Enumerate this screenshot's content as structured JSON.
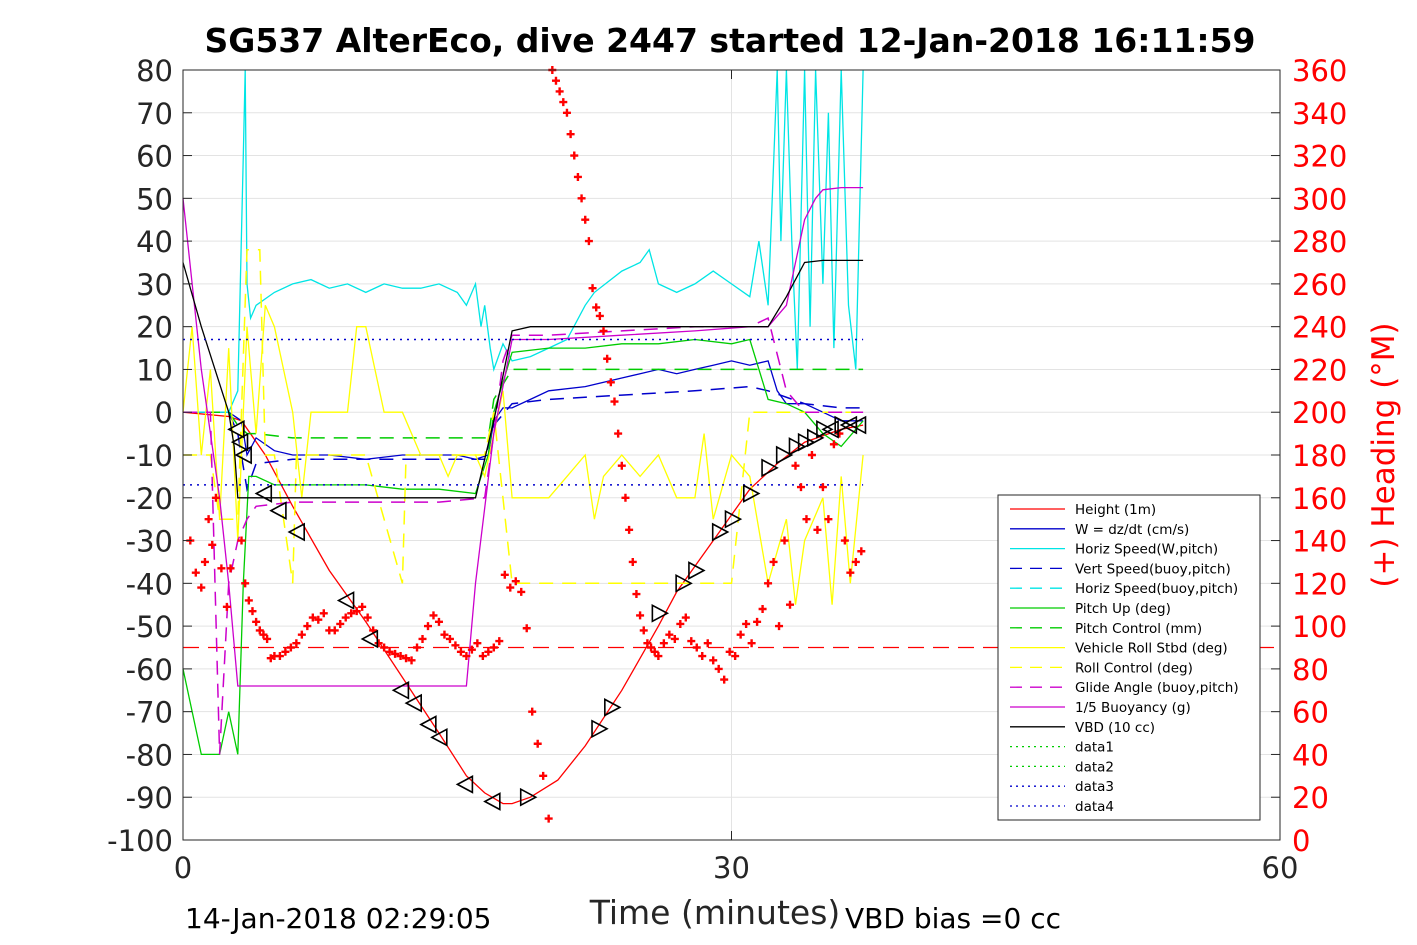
{
  "chart_data": {
    "type": "line",
    "title": "SG537 AlterEco, dive 2447 started 12-Jan-2018 16:11:59",
    "xlabel": "Time (minutes)",
    "ylabel_right": "(+) Heading (°M)",
    "footer_left": "14-Jan-2018 02:29:05",
    "footer_right": "VBD bias =0 cc",
    "xlim": [
      0,
      60
    ],
    "ylim": [
      -100,
      80
    ],
    "ylim_right": [
      0,
      360
    ],
    "x_ticks": [
      0,
      30,
      60
    ],
    "y_ticks": [
      -100,
      -90,
      -80,
      -70,
      -60,
      -50,
      -40,
      -30,
      -20,
      -10,
      0,
      10,
      20,
      30,
      40,
      50,
      60,
      70,
      80
    ],
    "y_ticks_right": [
      0,
      20,
      40,
      60,
      80,
      100,
      120,
      140,
      160,
      180,
      200,
      220,
      240,
      260,
      280,
      300,
      320,
      340,
      360
    ],
    "grid": true,
    "legend_position": "lower-right",
    "colors": {
      "height": "#ff0000",
      "w": "#0000cc",
      "horiz": "#00e5e5",
      "pitch": "#00cc00",
      "roll": "#ffff00",
      "glide": "#cc00cc",
      "buoy": "#cc00cc",
      "vbd": "#000000",
      "heading": "#ff0000",
      "axis": "#262626",
      "right_axis": "#ff0000"
    },
    "legend": [
      {
        "label": "Height (1m)",
        "color": "#ff0000",
        "style": "solid"
      },
      {
        "label": "W = dz/dt (cm/s)",
        "color": "#0000cc",
        "style": "solid"
      },
      {
        "label": "Horiz Speed(W,pitch)",
        "color": "#00e5e5",
        "style": "solid"
      },
      {
        "label": "Vert Speed(buoy,pitch)",
        "color": "#0000cc",
        "style": "dashed"
      },
      {
        "label": "Horiz Speed(buoy,pitch)",
        "color": "#00e5e5",
        "style": "dashed"
      },
      {
        "label": "Pitch Up (deg)",
        "color": "#00cc00",
        "style": "solid"
      },
      {
        "label": "Pitch Control (mm)",
        "color": "#00cc00",
        "style": "dashed"
      },
      {
        "label": "Vehicle Roll Stbd (deg)",
        "color": "#ffff00",
        "style": "solid"
      },
      {
        "label": "Roll Control (deg)",
        "color": "#ffff00",
        "style": "dashed"
      },
      {
        "label": "Glide Angle (buoy,pitch)",
        "color": "#cc00cc",
        "style": "dashed"
      },
      {
        "label": "1/5 Buoyancy (g)",
        "color": "#cc00cc",
        "style": "solid"
      },
      {
        "label": "VBD (10 cc)",
        "color": "#000000",
        "style": "solid"
      },
      {
        "label": "data1",
        "color": "#00cc00",
        "style": "dotted"
      },
      {
        "label": "data2",
        "color": "#00cc00",
        "style": "dotted"
      },
      {
        "label": "data3",
        "color": "#0000cc",
        "style": "dotted"
      },
      {
        "label": "data4",
        "color": "#0000cc",
        "style": "dotted"
      }
    ],
    "series": [
      {
        "key": "height",
        "color": "#ff0000",
        "style": "solid",
        "x": [
          0,
          2.5,
          3.2,
          4.5,
          6,
          8,
          10,
          12,
          14,
          15.5,
          16.5,
          17.5,
          18,
          19,
          20.5,
          22,
          24,
          26,
          27,
          28,
          29.5,
          31,
          32.5,
          34,
          36,
          37.2
        ],
        "y": [
          0,
          -1,
          -2,
          -10,
          -22,
          -37,
          -49,
          -62,
          -75,
          -85,
          -89,
          -91.5,
          -91.5,
          -90,
          -86,
          -78,
          -65,
          -50,
          -42,
          -36,
          -27,
          -18,
          -12,
          -7,
          -4,
          -3
        ]
      },
      {
        "key": "w",
        "color": "#0000cc",
        "style": "solid",
        "x": [
          0,
          2.5,
          3.2,
          3.5,
          4,
          5,
          6,
          8,
          10,
          12,
          14,
          15,
          16,
          16.7,
          17,
          17.5,
          18,
          19,
          20,
          22,
          24,
          25,
          26,
          27,
          28,
          29,
          30,
          31,
          32,
          32.5,
          33,
          34,
          35,
          36,
          37.2
        ],
        "y": [
          0,
          0,
          -2,
          -10,
          -6,
          -9,
          -10,
          -10,
          -11,
          -10,
          -10,
          -10,
          -11,
          -10,
          -2,
          1,
          1,
          3,
          5,
          6,
          8,
          9,
          10,
          9,
          10,
          11,
          12,
          11,
          12,
          5,
          2,
          2,
          0,
          -2,
          -2
        ]
      },
      {
        "key": "horiz",
        "color": "#00e5e5",
        "style": "solid",
        "x": [
          0,
          2.5,
          3,
          3.3,
          3.4,
          3.5,
          3.7,
          4,
          5,
          6,
          7,
          8,
          9,
          10,
          11,
          12,
          13,
          14,
          15,
          15.5,
          16,
          16.3,
          16.5,
          16.8,
          17,
          17.5,
          18,
          19,
          20,
          21,
          22,
          22.5,
          24,
          25,
          25.5,
          26,
          27,
          28,
          29,
          30,
          31,
          31.5,
          32,
          32.5,
          32.7,
          33,
          33.3,
          33.6,
          34,
          34.3,
          34.6,
          35,
          35.3,
          35.6,
          36,
          36.4,
          36.8,
          37.2
        ],
        "y": [
          0,
          0,
          5,
          60,
          80,
          30,
          22,
          25,
          28,
          30,
          31,
          29,
          30,
          28,
          30,
          29,
          29,
          30,
          28,
          25,
          30,
          20,
          25,
          15,
          10,
          16,
          12,
          13,
          15,
          17,
          25,
          28,
          33,
          35,
          38,
          30,
          28,
          30,
          33,
          30,
          27,
          40,
          25,
          80,
          40,
          80,
          40,
          10,
          80,
          20,
          80,
          30,
          70,
          15,
          80,
          25,
          10,
          80
        ]
      },
      {
        "key": "vert_buoy",
        "color": "#0000cc",
        "style": "dashed",
        "x": [
          0,
          2.5,
          3,
          3.5,
          4,
          6,
          10,
          14,
          16.5,
          17,
          18,
          20,
          24,
          28,
          31,
          32,
          34,
          36,
          37.2
        ],
        "y": [
          0,
          0,
          -5,
          -18,
          -12,
          -11,
          -11,
          -11,
          -11,
          -3,
          2,
          3,
          4,
          5,
          6,
          5,
          2,
          1,
          1
        ]
      },
      {
        "key": "pitch",
        "color": "#00cc00",
        "style": "solid",
        "x": [
          0,
          1,
          2,
          2.5,
          3,
          3.3,
          3.6,
          4,
          5,
          6,
          8,
          10,
          12,
          14,
          16,
          16.7,
          17,
          17.5,
          18,
          20,
          22,
          24,
          26,
          28,
          30,
          31,
          32,
          33,
          34,
          35,
          36,
          37.2
        ],
        "y": [
          -60,
          -80,
          -80,
          -70,
          -80,
          -40,
          -15,
          -15,
          -17,
          -17,
          -17,
          -17,
          -18,
          -18,
          -19,
          -10,
          0,
          7,
          14,
          15,
          15,
          16,
          16,
          17,
          16,
          17,
          3,
          2,
          0,
          -5,
          -8,
          -2
        ]
      },
      {
        "key": "pitch_control",
        "color": "#00cc00",
        "style": "dashed",
        "x": [
          0,
          2.5,
          3,
          3.5,
          4,
          6,
          10,
          14,
          16.7,
          17,
          18,
          20,
          24,
          28,
          31,
          32,
          34,
          37.2
        ],
        "y": [
          0,
          0,
          -3,
          -5,
          -5,
          -6,
          -6,
          -6,
          -6,
          3,
          10,
          10,
          10,
          10,
          10,
          10,
          10,
          10
        ]
      },
      {
        "key": "roll",
        "color": "#ffff00",
        "style": "solid",
        "x": [
          0,
          0.5,
          1,
          1.5,
          2,
          2.5,
          3,
          3.5,
          4,
          4.5,
          5,
          6,
          6.5,
          7,
          8,
          9,
          9.5,
          10,
          11,
          12,
          13,
          14,
          14.5,
          15,
          16,
          16.5,
          17,
          17.5,
          18,
          19,
          20,
          21,
          22,
          22.5,
          23,
          24,
          25,
          26,
          27,
          28,
          28.5,
          29,
          30,
          31,
          32,
          33,
          33.5,
          34,
          35,
          35.5,
          36,
          36.5,
          37.2
        ],
        "y": [
          0,
          20,
          -10,
          10,
          -25,
          15,
          -30,
          20,
          -5,
          25,
          20,
          0,
          -20,
          0,
          0,
          0,
          20,
          20,
          0,
          0,
          -10,
          -10,
          -15,
          -10,
          -10,
          -15,
          -5,
          5,
          -20,
          -20,
          -20,
          -15,
          -10,
          -25,
          -15,
          -10,
          -15,
          -10,
          -20,
          -20,
          -5,
          -25,
          -10,
          -15,
          -40,
          -25,
          -45,
          -30,
          -20,
          -45,
          -15,
          -40,
          -10
        ]
      },
      {
        "key": "roll_control",
        "color": "#ffff00",
        "style": "dashed",
        "x": [
          0,
          1.5,
          2,
          3,
          3.5,
          4.2,
          4.5,
          5,
          6,
          6.2,
          8,
          10,
          12,
          12.2,
          14,
          16.5,
          17,
          18,
          20,
          24,
          26,
          28,
          30,
          31,
          32,
          34,
          37.2
        ],
        "y": [
          -10,
          -10,
          -25,
          -25,
          38,
          38,
          -10,
          -10,
          -40,
          -10,
          -10,
          -10,
          -40,
          -10,
          -10,
          -10,
          0,
          -40,
          -40,
          -40,
          -40,
          -40,
          -40,
          0,
          0,
          0,
          0
        ]
      },
      {
        "key": "glide",
        "color": "#cc00cc",
        "style": "dashed",
        "x": [
          0,
          1.5,
          2,
          2.5,
          3,
          3.5,
          4,
          6,
          10,
          14,
          16.5,
          17,
          17.5,
          18,
          20,
          24,
          28,
          31,
          32,
          33,
          34,
          35,
          36,
          37.2
        ],
        "y": [
          0,
          0,
          -80,
          -40,
          -30,
          -25,
          -22,
          -21,
          -21,
          -21,
          -20,
          -5,
          12,
          18,
          18,
          19,
          20,
          20,
          22,
          5,
          0,
          0,
          0,
          0
        ]
      },
      {
        "key": "buoy",
        "color": "#cc00cc",
        "style": "solid",
        "x": [
          0,
          0.3,
          1,
          2,
          2.5,
          3,
          4,
          8,
          12,
          15,
          15.5,
          16,
          17,
          18,
          19,
          20,
          24,
          28,
          31,
          32,
          33,
          34,
          34.6,
          35,
          36,
          37.2
        ],
        "y": [
          50,
          38,
          10,
          -20,
          -40,
          -64,
          -64,
          -64,
          -64,
          -64,
          -64,
          -40,
          -5,
          17,
          17,
          17,
          18,
          19,
          20,
          20,
          25,
          45,
          50,
          52,
          52.5,
          52.5
        ]
      },
      {
        "key": "vbd",
        "color": "#000000",
        "style": "solid",
        "x": [
          0,
          1,
          2.5,
          2.8,
          3,
          4,
          8,
          12,
          15,
          16,
          17,
          18,
          19,
          20,
          24,
          28,
          30,
          31,
          32,
          33,
          34,
          35,
          36,
          37.2
        ],
        "y": [
          35,
          20,
          0,
          -8,
          -20,
          -20,
          -20,
          -20,
          -20,
          -20,
          -2,
          19,
          20,
          20,
          20,
          20,
          20,
          20,
          20,
          27,
          35,
          35.5,
          35.5,
          35.5
        ]
      },
      {
        "key": "data3",
        "color": "#0000cc",
        "style": "dotted",
        "x": [
          0,
          37.2
        ],
        "y": [
          17,
          17
        ]
      },
      {
        "key": "data4",
        "color": "#0000cc",
        "style": "dotted",
        "x": [
          0,
          37.2
        ],
        "y": [
          -17,
          -17
        ]
      }
    ],
    "heading_dashed_level": 90,
    "heading_series": {
      "color": "#ff0000",
      "x": [
        0.4,
        0.7,
        1.0,
        1.2,
        1.4,
        1.6,
        1.8,
        2.1,
        2.4,
        2.6,
        3.2,
        3.4,
        3.6,
        3.8,
        4.0,
        4.2,
        4.4,
        4.6,
        4.8,
        5.0,
        5.3,
        5.6,
        5.9,
        6.2,
        6.5,
        6.8,
        7.1,
        7.4,
        7.7,
        8.0,
        8.3,
        8.6,
        8.9,
        9.2,
        9.5,
        9.8,
        10.1,
        10.4,
        10.7,
        11.0,
        11.3,
        11.6,
        11.9,
        12.2,
        12.5,
        12.8,
        13.1,
        13.4,
        13.7,
        14.0,
        14.3,
        14.6,
        14.9,
        15.2,
        15.5,
        15.8,
        16.1,
        16.4,
        16.7,
        17.0,
        17.3,
        17.6,
        17.9,
        18.2,
        18.5,
        18.8,
        19.1,
        19.4,
        19.7,
        20.0,
        20.2,
        20.4,
        20.6,
        20.8,
        21.0,
        21.2,
        21.4,
        21.6,
        21.8,
        22.0,
        22.2,
        22.4,
        22.6,
        22.8,
        23.0,
        23.2,
        23.4,
        23.6,
        23.8,
        24.0,
        24.2,
        24.4,
        24.6,
        24.8,
        25.0,
        25.2,
        25.4,
        25.6,
        25.8,
        26.0,
        26.3,
        26.6,
        26.9,
        27.2,
        27.5,
        27.8,
        28.1,
        28.4,
        28.7,
        29.0,
        29.3,
        29.6,
        29.9,
        30.2,
        30.5,
        30.8,
        31.1,
        31.4,
        31.7,
        32.0,
        32.3,
        32.6,
        32.9,
        33.2,
        33.5,
        33.8,
        34.1,
        34.4,
        34.7,
        35.0,
        35.3,
        35.6,
        35.9,
        36.2,
        36.5,
        36.8,
        37.1
      ],
      "y": [
        140,
        125,
        118,
        130,
        150,
        138,
        160,
        127,
        109,
        127,
        140,
        120,
        112,
        107,
        102,
        98,
        96,
        94,
        85,
        86,
        86,
        88,
        90,
        92,
        96,
        100,
        104,
        103,
        106,
        98,
        98,
        101,
        104,
        106,
        107,
        109,
        104,
        98,
        92,
        90,
        88,
        87,
        86,
        85,
        84,
        90,
        94,
        100,
        105,
        102,
        96,
        94,
        91,
        88,
        86,
        89,
        92,
        86,
        88,
        90,
        93,
        124,
        118,
        121,
        116,
        99,
        60,
        45,
        30,
        10,
        360,
        355,
        350,
        345,
        340,
        330,
        320,
        310,
        300,
        290,
        280,
        258,
        249,
        245,
        238,
        225,
        214,
        205,
        190,
        175,
        160,
        145,
        130,
        115,
        105,
        98,
        92,
        90,
        88,
        86,
        92,
        96,
        94,
        101,
        104,
        93,
        90,
        86,
        92,
        84,
        80,
        75,
        88,
        86,
        96,
        101,
        92,
        102,
        108,
        120,
        130,
        100,
        140,
        110,
        175,
        165,
        150,
        180,
        145,
        165,
        150,
        185,
        190,
        140,
        125,
        130,
        135
      ]
    },
    "markers": {
      "color": "#000000",
      "x": [
        3.0,
        3.2,
        3.4,
        4.5,
        5.3,
        6.3,
        9.0,
        10.3,
        12.0,
        12.7,
        13.5,
        14.1,
        15.5,
        17.0,
        18.8,
        22.7,
        23.4,
        26.0,
        27.3,
        28.0,
        29.3,
        30.0,
        31.0,
        32.0,
        32.8,
        33.5,
        34.0,
        34.5,
        35.0,
        35.5,
        36.0,
        36.5,
        37.0
      ],
      "y": [
        -4,
        -7,
        -10,
        -19,
        -23,
        -28,
        -44,
        -53,
        -65,
        -68,
        -73,
        -76,
        -87,
        -91,
        -90,
        -74,
        -69,
        -47,
        -40,
        -37,
        -28,
        -25,
        -19,
        -13,
        -10,
        -8,
        -7,
        -6,
        -4,
        -4,
        -3,
        -3,
        -3
      ]
    }
  }
}
